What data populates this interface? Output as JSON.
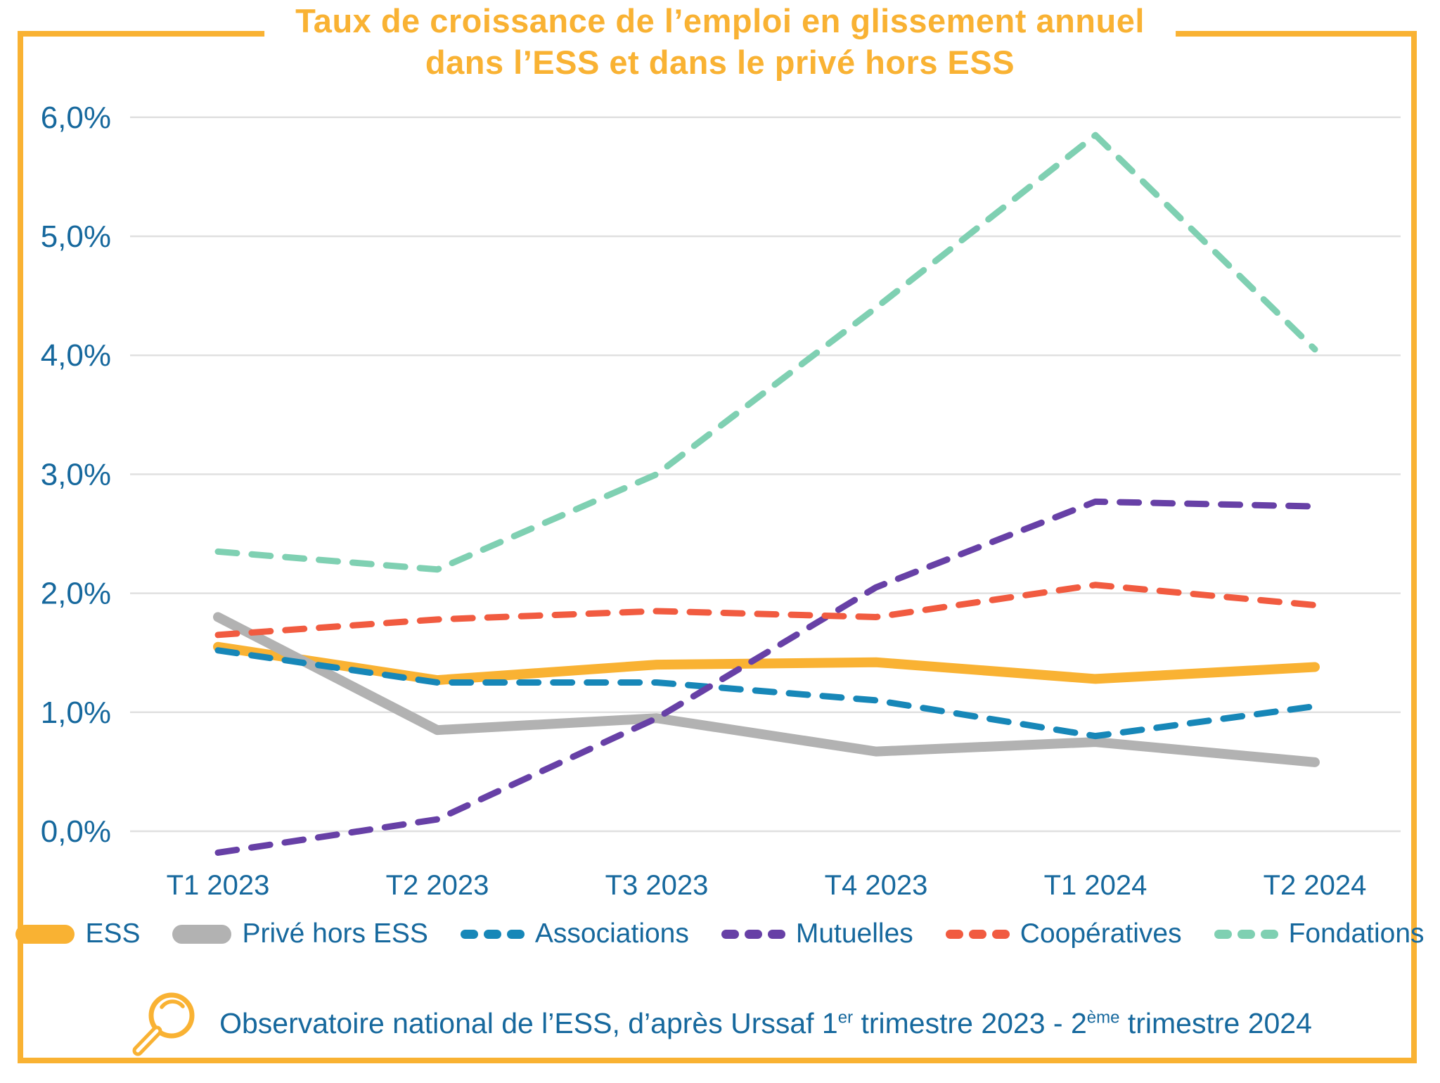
{
  "title": {
    "line1": "Taux de croissance de l’emploi en glissement annuel",
    "line2": "dans l’ESS et dans le privé hors ESS"
  },
  "colors": {
    "accent_orange": "#F9B233",
    "text_blue": "#16689D",
    "gridline": "#E0E0E0"
  },
  "chart_data": {
    "type": "line",
    "categories": [
      "T1 2023",
      "T2 2023",
      "T3 2023",
      "T4 2023",
      "T1 2024",
      "T2 2024"
    ],
    "series": [
      {
        "name": "ESS",
        "color": "#F9B233",
        "style": "solid",
        "values": [
          1.55,
          1.27,
          1.4,
          1.42,
          1.28,
          1.38
        ]
      },
      {
        "name": "Privé hors ESS",
        "color": "#B2B2B2",
        "style": "solid",
        "values": [
          1.8,
          0.85,
          0.95,
          0.67,
          0.75,
          0.58
        ]
      },
      {
        "name": "Associations",
        "color": "#1787B8",
        "style": "dashed",
        "values": [
          1.52,
          1.25,
          1.25,
          1.1,
          0.8,
          1.05
        ]
      },
      {
        "name": "Mutuelles",
        "color": "#6740A6",
        "style": "dashed",
        "values": [
          -0.18,
          0.1,
          0.95,
          2.05,
          2.77,
          2.73
        ]
      },
      {
        "name": "Coopératives",
        "color": "#F15B40",
        "style": "dashed",
        "values": [
          1.65,
          1.78,
          1.85,
          1.8,
          2.07,
          1.9
        ]
      },
      {
        "name": "Fondations",
        "color": "#7FD0B2",
        "style": "dashed",
        "values": [
          2.35,
          2.2,
          3.0,
          4.4,
          5.85,
          4.05
        ]
      }
    ],
    "yticks": [
      "0,0%",
      "1,0%",
      "2,0%",
      "3,0%",
      "4,0%",
      "5,0%",
      "6,0%"
    ],
    "ylim": [
      -0.3,
      6.3
    ],
    "grid": true,
    "legend_position": "bottom",
    "title": "Taux de croissance de l’emploi en glissement annuel dans l’ESS et dans le privé hors ESS",
    "xlabel": "",
    "ylabel": ""
  },
  "source": {
    "part1": "Observatoire national de l’ESS, d’après Urssaf 1",
    "sup1": "er",
    "part2": " trimestre 2023 - 2",
    "sup2": "ème",
    "part3": " trimestre 2024"
  }
}
